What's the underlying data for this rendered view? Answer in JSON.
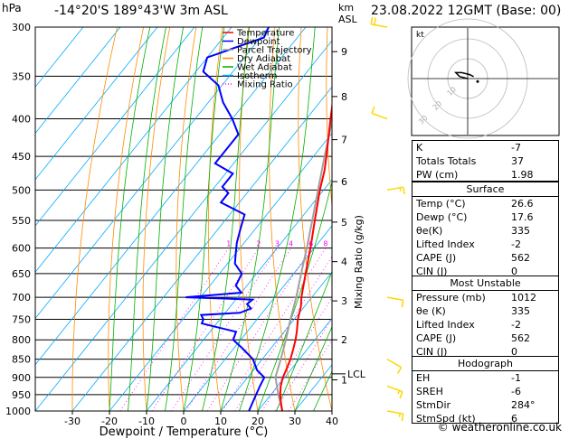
{
  "header": {
    "hpa_label": "hPa",
    "location": "-14°20'S  189°43'W  3m  ASL",
    "km_label": "km",
    "asl_label": "ASL",
    "datetime": "23.08.2022  12GMT  (Base: 00)"
  },
  "chart_data": {
    "type": "skew-t",
    "title": "-14°20'S 189°43'W 3m ASL",
    "xlabel": "Dewpoint / Temperature (°C)",
    "ylabel": "hPa",
    "y2label": "Mixing Ratio (g/kg)",
    "xlim": [
      -40,
      40
    ],
    "ylim": [
      1000,
      300
    ],
    "x_ticks": [
      -30,
      -20,
      -10,
      0,
      10,
      20,
      30,
      40
    ],
    "pressure_levels": [
      300,
      350,
      400,
      450,
      500,
      550,
      600,
      650,
      700,
      750,
      800,
      850,
      900,
      950,
      1000
    ],
    "height_km_ticks": [
      {
        "km": "1",
        "p": 907
      },
      {
        "km": "2",
        "p": 800
      },
      {
        "km": "3",
        "p": 708
      },
      {
        "km": "4",
        "p": 626
      },
      {
        "km": "5",
        "p": 553
      },
      {
        "km": "6",
        "p": 487
      },
      {
        "km": "7",
        "p": 427
      },
      {
        "km": "8",
        "p": 373
      },
      {
        "km": "9",
        "p": 324
      }
    ],
    "lcl": {
      "label": "LCL",
      "p": 890
    },
    "mixing_ratio_labels": [
      "1",
      "2",
      "3",
      "4",
      "6",
      "8",
      "10",
      "16",
      "20",
      "25"
    ],
    "legend": [
      "Temperature",
      "Dewpoint",
      "Parcel Trajectory",
      "Dry Adiabat",
      "Wet Adiabat",
      "Isotherm",
      "Mixing Ratio"
    ],
    "temperature": [
      [
        1000,
        26.6
      ],
      [
        975,
        24.5
      ],
      [
        950,
        22.5
      ],
      [
        925,
        20.8
      ],
      [
        900,
        19.5
      ],
      [
        880,
        18.8
      ],
      [
        850,
        17.6
      ],
      [
        820,
        16.0
      ],
      [
        800,
        14.8
      ],
      [
        780,
        13.4
      ],
      [
        750,
        11.0
      ],
      [
        720,
        9.0
      ],
      [
        700,
        7.2
      ],
      [
        650,
        3.2
      ],
      [
        600,
        -1.0
      ],
      [
        550,
        -5.8
      ],
      [
        500,
        -11.0
      ],
      [
        470,
        -14.0
      ],
      [
        450,
        -16.5
      ],
      [
        400,
        -23.5
      ],
      [
        370,
        -28.0
      ],
      [
        350,
        -31.5
      ],
      [
        330,
        -33.5
      ],
      [
        320,
        -32.0
      ],
      [
        310,
        -32.5
      ],
      [
        300,
        -34.0
      ]
    ],
    "dewpoint": [
      [
        1000,
        17.6
      ],
      [
        975,
        16.8
      ],
      [
        950,
        16.0
      ],
      [
        925,
        15.2
      ],
      [
        900,
        14.5
      ],
      [
        880,
        11.0
      ],
      [
        850,
        7.5
      ],
      [
        820,
        2.0
      ],
      [
        800,
        -2.0
      ],
      [
        780,
        -3.0
      ],
      [
        760,
        -14.0
      ],
      [
        750,
        -14.5
      ],
      [
        740,
        -16.0
      ],
      [
        735,
        -6.0
      ],
      [
        725,
        -4.0
      ],
      [
        715,
        -6.0
      ],
      [
        705,
        -5.5
      ],
      [
        700,
        -24.0
      ],
      [
        690,
        -10.0
      ],
      [
        675,
        -13.0
      ],
      [
        650,
        -14.0
      ],
      [
        630,
        -18.0
      ],
      [
        610,
        -20.0
      ],
      [
        590,
        -22.0
      ],
      [
        565,
        -24.0
      ],
      [
        540,
        -26.0
      ],
      [
        520,
        -35.0
      ],
      [
        505,
        -35.0
      ],
      [
        495,
        -38.0
      ],
      [
        475,
        -38.0
      ],
      [
        460,
        -45.0
      ],
      [
        420,
        -45.0
      ],
      [
        400,
        -50.0
      ],
      [
        380,
        -56.0
      ],
      [
        360,
        -61.0
      ],
      [
        345,
        -68.0
      ],
      [
        330,
        -70.0
      ],
      [
        310,
        -59.0
      ],
      [
        300,
        -60.0
      ]
    ],
    "parcel": [
      [
        1000,
        26.6
      ],
      [
        950,
        22.0
      ],
      [
        900,
        17.5
      ],
      [
        890,
        17.0
      ],
      [
        850,
        15.0
      ],
      [
        800,
        12.2
      ],
      [
        750,
        9.0
      ],
      [
        700,
        5.8
      ],
      [
        650,
        2.0
      ],
      [
        600,
        -2.0
      ],
      [
        550,
        -6.5
      ],
      [
        500,
        -11.5
      ],
      [
        450,
        -17.0
      ],
      [
        400,
        -23.0
      ],
      [
        350,
        -30.5
      ],
      [
        300,
        -39.5
      ]
    ],
    "wind_barbs": [
      {
        "p": 300,
        "dir": 280,
        "kt": 20
      },
      {
        "p": 400,
        "dir": 290,
        "kt": 10
      },
      {
        "p": 500,
        "dir": 80,
        "kt": 5
      },
      {
        "p": 700,
        "dir": 100,
        "kt": 10
      },
      {
        "p": 850,
        "dir": 120,
        "kt": 10
      },
      {
        "p": 925,
        "dir": 110,
        "kt": 5
      },
      {
        "p": 1000,
        "dir": 100,
        "kt": 5
      }
    ]
  },
  "hodograph": {
    "unit_label": "kt",
    "ring_labels": [
      "10",
      "20",
      "30"
    ],
    "trace_kt": [
      [
        0,
        0
      ],
      [
        -4,
        1
      ],
      [
        -6,
        3
      ],
      [
        -3,
        3
      ],
      [
        1,
        2
      ],
      [
        3,
        1
      ]
    ],
    "storm_motion_kt": [
      5,
      -1.5
    ]
  },
  "indices": [
    {
      "label": "K",
      "value": "-7"
    },
    {
      "label": "Totals Totals",
      "value": "37"
    },
    {
      "label": "PW (cm)",
      "value": "1.98"
    }
  ],
  "surface": {
    "title": "Surface",
    "rows": [
      {
        "label": "Temp (°C)",
        "value": "26.6"
      },
      {
        "label": "Dewp (°C)",
        "value": "17.6"
      },
      {
        "label": "θe(K)",
        "value": "335"
      },
      {
        "label": "Lifted Index",
        "value": "-2"
      },
      {
        "label": "CAPE (J)",
        "value": "562"
      },
      {
        "label": "CIN (J)",
        "value": "0"
      }
    ]
  },
  "most_unstable": {
    "title": "Most Unstable",
    "rows": [
      {
        "label": "Pressure (mb)",
        "value": "1012"
      },
      {
        "label": "θe (K)",
        "value": "335"
      },
      {
        "label": "Lifted Index",
        "value": "-2"
      },
      {
        "label": "CAPE (J)",
        "value": "562"
      },
      {
        "label": "CIN (J)",
        "value": "0"
      }
    ]
  },
  "hodograph_box": {
    "title": "Hodograph",
    "rows": [
      {
        "label": "EH",
        "value": "-1"
      },
      {
        "label": "SREH",
        "value": "-6"
      },
      {
        "label": "StmDir",
        "value": "284°"
      },
      {
        "label": "StmSpd (kt)",
        "value": "6"
      }
    ]
  },
  "credit": "© weatheronline.co.uk",
  "colors": {
    "temperature": "#ff0000",
    "dewpoint": "#0000ff",
    "parcel": "#a0a0a0",
    "dry_adiabat": "#ff8c00",
    "wet_adiabat": "#00b000",
    "isotherm": "#00aaff",
    "mixing_ratio": "#ff00ff",
    "wind_barb": "#ffd700"
  }
}
